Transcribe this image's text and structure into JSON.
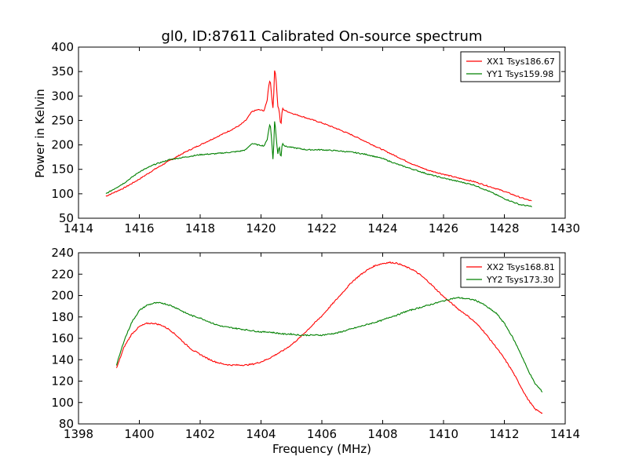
{
  "chart_data": [
    {
      "type": "line",
      "title": "gl0, ID:87611 Calibrated On-source spectrum",
      "xlabel": "",
      "ylabel": "Power in Kelvin",
      "xlim": [
        1414,
        1430
      ],
      "ylim": [
        50,
        400
      ],
      "xticks": [
        1414,
        1416,
        1418,
        1420,
        1422,
        1424,
        1426,
        1428,
        1430
      ],
      "yticks": [
        50,
        100,
        150,
        200,
        250,
        300,
        350,
        400
      ],
      "legend_position": "top-right",
      "grid": false,
      "series": [
        {
          "name": "XX1 Tsys186.67",
          "color": "#ff0000",
          "x": [
            1414.9,
            1415.5,
            1416.0,
            1416.5,
            1417.0,
            1417.5,
            1418.0,
            1418.5,
            1419.0,
            1419.3,
            1419.5,
            1419.7,
            1419.9,
            1420.1,
            1420.2,
            1420.25,
            1420.3,
            1420.35,
            1420.4,
            1420.45,
            1420.5,
            1420.55,
            1420.6,
            1420.65,
            1420.7,
            1420.75,
            1420.8,
            1421.0,
            1421.5,
            1422.0,
            1422.5,
            1423.0,
            1423.5,
            1424.0,
            1424.5,
            1425.0,
            1425.5,
            1426.0,
            1426.5,
            1427.0,
            1427.5,
            1428.0,
            1428.5,
            1428.9
          ],
          "y": [
            95,
            112,
            130,
            150,
            168,
            185,
            200,
            215,
            230,
            240,
            250,
            268,
            272,
            270,
            290,
            320,
            335,
            300,
            270,
            360,
            330,
            280,
            270,
            235,
            275,
            272,
            270,
            265,
            255,
            245,
            233,
            220,
            205,
            190,
            175,
            160,
            148,
            140,
            132,
            125,
            115,
            105,
            93,
            85
          ]
        },
        {
          "name": "YY1 Tsys159.98",
          "color": "#008000",
          "x": [
            1414.9,
            1415.5,
            1416.0,
            1416.5,
            1417.0,
            1417.5,
            1418.0,
            1418.5,
            1419.0,
            1419.3,
            1419.5,
            1419.7,
            1419.9,
            1420.1,
            1420.2,
            1420.25,
            1420.3,
            1420.35,
            1420.4,
            1420.45,
            1420.5,
            1420.55,
            1420.6,
            1420.65,
            1420.7,
            1420.75,
            1420.8,
            1421.0,
            1421.5,
            1422.0,
            1422.5,
            1423.0,
            1423.5,
            1424.0,
            1424.5,
            1425.0,
            1425.5,
            1426.0,
            1426.5,
            1427.0,
            1427.5,
            1428.0,
            1428.5,
            1428.9
          ],
          "y": [
            100,
            122,
            145,
            160,
            170,
            175,
            180,
            182,
            185,
            187,
            190,
            203,
            200,
            198,
            210,
            230,
            245,
            210,
            165,
            255,
            215,
            180,
            200,
            170,
            205,
            200,
            197,
            195,
            190,
            190,
            188,
            185,
            180,
            172,
            160,
            150,
            140,
            132,
            125,
            118,
            105,
            90,
            78,
            74
          ]
        }
      ]
    },
    {
      "type": "line",
      "title": "",
      "xlabel": "Frequency (MHz)",
      "ylabel": "",
      "xlim": [
        1398,
        1414
      ],
      "ylim": [
        80,
        240
      ],
      "xticks": [
        1398,
        1400,
        1402,
        1404,
        1406,
        1408,
        1410,
        1412,
        1414
      ],
      "yticks": [
        80,
        100,
        120,
        140,
        160,
        180,
        200,
        220,
        240
      ],
      "legend_position": "top-right",
      "grid": false,
      "series": [
        {
          "name": "XX2 Tsys168.81",
          "color": "#ff0000",
          "x": [
            1399.25,
            1399.5,
            1399.75,
            1400.0,
            1400.25,
            1400.5,
            1400.75,
            1401.0,
            1401.25,
            1401.5,
            1401.75,
            1402.0,
            1402.25,
            1402.5,
            1402.75,
            1403.0,
            1403.25,
            1403.5,
            1403.75,
            1404.0,
            1404.25,
            1404.5,
            1404.75,
            1405.0,
            1405.25,
            1405.5,
            1405.75,
            1406.0,
            1406.25,
            1406.5,
            1406.75,
            1407.0,
            1407.25,
            1407.5,
            1407.75,
            1408.0,
            1408.25,
            1408.5,
            1408.75,
            1409.0,
            1409.25,
            1409.5,
            1409.75,
            1410.0,
            1410.25,
            1410.5,
            1410.75,
            1411.0,
            1411.25,
            1411.5,
            1411.75,
            1412.0,
            1412.25,
            1412.5,
            1412.75,
            1413.0,
            1413.25
          ],
          "y": [
            132,
            152,
            164,
            171,
            174,
            174,
            172,
            168,
            162,
            155,
            149,
            145,
            141,
            138,
            136,
            135,
            135,
            135,
            136,
            138,
            141,
            145,
            149,
            154,
            160,
            167,
            174,
            181,
            189,
            197,
            205,
            213,
            219,
            224,
            228,
            230,
            231,
            230,
            227,
            224,
            219,
            213,
            206,
            199,
            193,
            187,
            182,
            176,
            169,
            160,
            151,
            141,
            130,
            117,
            104,
            94,
            90
          ]
        },
        {
          "name": "YY2 Tsys173.30",
          "color": "#008000",
          "x": [
            1399.25,
            1399.5,
            1399.75,
            1400.0,
            1400.25,
            1400.5,
            1400.75,
            1401.0,
            1401.25,
            1401.5,
            1401.75,
            1402.0,
            1402.25,
            1402.5,
            1402.75,
            1403.0,
            1403.25,
            1403.5,
            1403.75,
            1404.0,
            1404.25,
            1404.5,
            1404.75,
            1405.0,
            1405.25,
            1405.5,
            1405.75,
            1406.0,
            1406.25,
            1406.5,
            1406.75,
            1407.0,
            1407.25,
            1407.5,
            1407.75,
            1408.0,
            1408.25,
            1408.5,
            1408.75,
            1409.0,
            1409.25,
            1409.5,
            1409.75,
            1410.0,
            1410.25,
            1410.5,
            1410.75,
            1411.0,
            1411.25,
            1411.5,
            1411.75,
            1412.0,
            1412.25,
            1412.5,
            1412.75,
            1413.0,
            1413.25
          ],
          "y": [
            135,
            158,
            175,
            186,
            191,
            193,
            193,
            191,
            188,
            184,
            181,
            179,
            176,
            173,
            171,
            170,
            169,
            168,
            167,
            166,
            166,
            165,
            164,
            164,
            163,
            163,
            163,
            163,
            164,
            165,
            167,
            169,
            171,
            173,
            175,
            177,
            180,
            182,
            185,
            187,
            189,
            191,
            193,
            195,
            197,
            198,
            197,
            196,
            193,
            188,
            183,
            174,
            162,
            148,
            132,
            118,
            110
          ]
        }
      ]
    }
  ]
}
